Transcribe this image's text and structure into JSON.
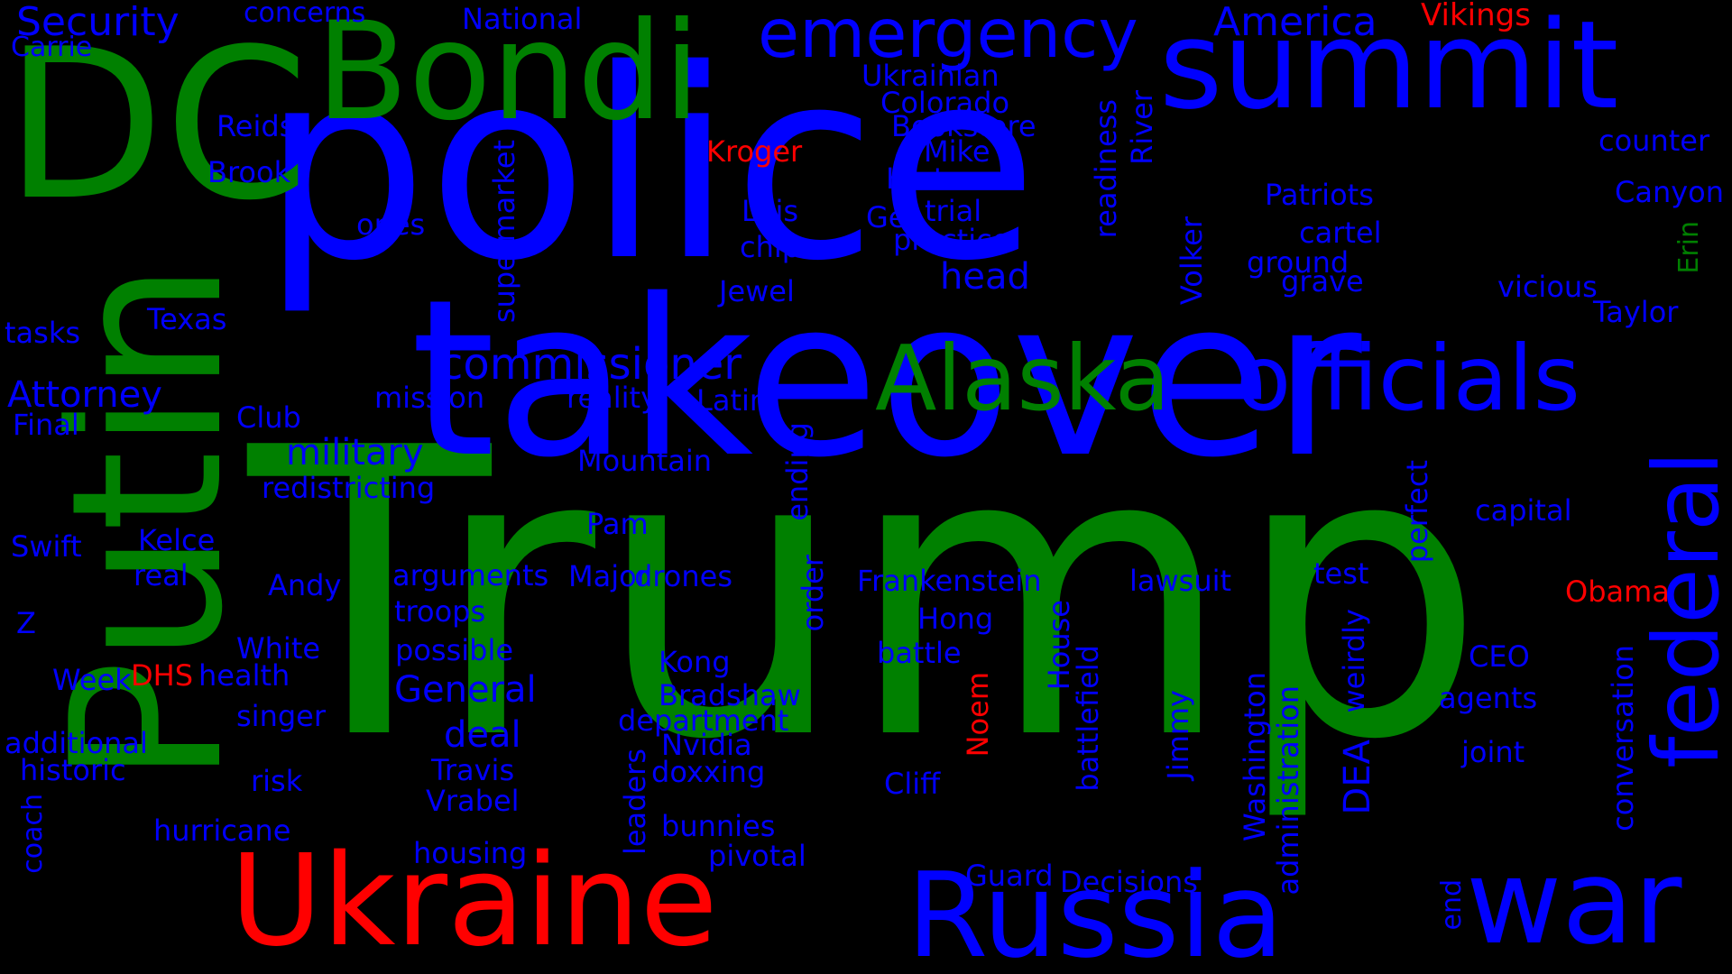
{
  "colors": {
    "background": "#000000",
    "blue": "#0000ff",
    "green": "#008000",
    "red": "#ff0000"
  },
  "words": [
    {
      "text": "Trump",
      "color": "green"
    },
    {
      "text": "police",
      "color": "blue"
    },
    {
      "text": "takeover",
      "color": "blue"
    },
    {
      "text": "DC",
      "color": "green"
    },
    {
      "text": "Putin",
      "color": "green"
    },
    {
      "text": "Bondi",
      "color": "green"
    },
    {
      "text": "summit",
      "color": "blue"
    },
    {
      "text": "Ukraine",
      "color": "red"
    },
    {
      "text": "Russia",
      "color": "blue"
    },
    {
      "text": "war",
      "color": "blue"
    },
    {
      "text": "officials",
      "color": "blue"
    },
    {
      "text": "Alaska",
      "color": "green"
    },
    {
      "text": "federal",
      "color": "blue"
    },
    {
      "text": "emergency",
      "color": "blue"
    },
    {
      "text": "commissioner",
      "color": "blue"
    },
    {
      "text": "Security",
      "color": "blue"
    },
    {
      "text": "concerns",
      "color": "blue"
    },
    {
      "text": "National",
      "color": "blue"
    },
    {
      "text": "America",
      "color": "blue"
    },
    {
      "text": "Vikings",
      "color": "red"
    },
    {
      "text": "Carrie",
      "color": "blue"
    },
    {
      "text": "Ukrainian",
      "color": "blue"
    },
    {
      "text": "Colorado",
      "color": "blue"
    },
    {
      "text": "Bookstore",
      "color": "blue"
    },
    {
      "text": "Reids",
      "color": "blue"
    },
    {
      "text": "Kroger",
      "color": "red"
    },
    {
      "text": "Mike",
      "color": "blue"
    },
    {
      "text": "counter",
      "color": "blue"
    },
    {
      "text": "Brook",
      "color": "blue"
    },
    {
      "text": "Kurt",
      "color": "blue"
    },
    {
      "text": "readiness",
      "color": "blue"
    },
    {
      "text": "River",
      "color": "blue"
    },
    {
      "text": "Patriots",
      "color": "blue"
    },
    {
      "text": "Canyon",
      "color": "blue"
    },
    {
      "text": "Lais",
      "color": "blue"
    },
    {
      "text": "Gen",
      "color": "blue"
    },
    {
      "text": "trial",
      "color": "blue"
    },
    {
      "text": "ones",
      "color": "blue"
    },
    {
      "text": "chip",
      "color": "blue"
    },
    {
      "text": "practice",
      "color": "blue"
    },
    {
      "text": "cartel",
      "color": "blue"
    },
    {
      "text": "Erin",
      "color": "green"
    },
    {
      "text": "supermarket",
      "color": "blue"
    },
    {
      "text": "ground",
      "color": "blue"
    },
    {
      "text": "head",
      "color": "blue"
    },
    {
      "text": "Volker",
      "color": "blue"
    },
    {
      "text": "grave",
      "color": "blue"
    },
    {
      "text": "vicious",
      "color": "blue"
    },
    {
      "text": "Jewel",
      "color": "blue"
    },
    {
      "text": "Taylor",
      "color": "blue"
    },
    {
      "text": "Texas",
      "color": "blue"
    },
    {
      "text": "tasks",
      "color": "blue"
    },
    {
      "text": "Attorney",
      "color": "blue"
    },
    {
      "text": "mission",
      "color": "blue"
    },
    {
      "text": "reality",
      "color": "blue"
    },
    {
      "text": "Latin",
      "color": "blue"
    },
    {
      "text": "Final",
      "color": "blue"
    },
    {
      "text": "Club",
      "color": "blue"
    },
    {
      "text": "military",
      "color": "blue"
    },
    {
      "text": "Mountain",
      "color": "blue"
    },
    {
      "text": "ending",
      "color": "blue"
    },
    {
      "text": "redistricting",
      "color": "blue"
    },
    {
      "text": "capital",
      "color": "blue"
    },
    {
      "text": "perfect",
      "color": "blue"
    },
    {
      "text": "Pam",
      "color": "blue"
    },
    {
      "text": "Swift",
      "color": "blue"
    },
    {
      "text": "Kelce",
      "color": "blue"
    },
    {
      "text": "arguments",
      "color": "blue"
    },
    {
      "text": "Major",
      "color": "blue"
    },
    {
      "text": "drones",
      "color": "blue"
    },
    {
      "text": "Frankenstein",
      "color": "blue"
    },
    {
      "text": "lawsuit",
      "color": "blue"
    },
    {
      "text": "test",
      "color": "blue"
    },
    {
      "text": "real",
      "color": "blue"
    },
    {
      "text": "Andy",
      "color": "blue"
    },
    {
      "text": "order",
      "color": "blue"
    },
    {
      "text": "Obama",
      "color": "red"
    },
    {
      "text": "troops",
      "color": "blue"
    },
    {
      "text": "Hong",
      "color": "blue"
    },
    {
      "text": "Z",
      "color": "blue"
    },
    {
      "text": "White",
      "color": "blue"
    },
    {
      "text": "possible",
      "color": "blue"
    },
    {
      "text": "battle",
      "color": "blue"
    },
    {
      "text": "House",
      "color": "blue"
    },
    {
      "text": "weirdly",
      "color": "blue"
    },
    {
      "text": "CEO",
      "color": "blue"
    },
    {
      "text": "Kong",
      "color": "blue"
    },
    {
      "text": "Week",
      "color": "blue"
    },
    {
      "text": "DHS",
      "color": "red"
    },
    {
      "text": "health",
      "color": "blue"
    },
    {
      "text": "General",
      "color": "blue"
    },
    {
      "text": "Bradshaw",
      "color": "blue"
    },
    {
      "text": "Noem",
      "color": "red"
    },
    {
      "text": "agents",
      "color": "blue"
    },
    {
      "text": "singer",
      "color": "blue"
    },
    {
      "text": "department",
      "color": "blue"
    },
    {
      "text": "Jimmy",
      "color": "blue"
    },
    {
      "text": "Washington",
      "color": "blue"
    },
    {
      "text": "conversation",
      "color": "blue"
    },
    {
      "text": "deal",
      "color": "blue"
    },
    {
      "text": "additional",
      "color": "blue"
    },
    {
      "text": "Nvidia",
      "color": "blue"
    },
    {
      "text": "DEA",
      "color": "blue"
    },
    {
      "text": "joint",
      "color": "blue"
    },
    {
      "text": "historic",
      "color": "blue"
    },
    {
      "text": "Travis",
      "color": "blue"
    },
    {
      "text": "doxxing",
      "color": "blue"
    },
    {
      "text": "risk",
      "color": "blue"
    },
    {
      "text": "Cliff",
      "color": "blue"
    },
    {
      "text": "administration",
      "color": "blue"
    },
    {
      "text": "Vrabel",
      "color": "blue"
    },
    {
      "text": "battlefield",
      "color": "blue"
    },
    {
      "text": "coach",
      "color": "blue"
    },
    {
      "text": "hurricane",
      "color": "blue"
    },
    {
      "text": "leaders",
      "color": "blue"
    },
    {
      "text": "bunnies",
      "color": "blue"
    },
    {
      "text": "housing",
      "color": "blue"
    },
    {
      "text": "pivotal",
      "color": "blue"
    },
    {
      "text": "Guard",
      "color": "blue"
    },
    {
      "text": "Decisions",
      "color": "blue"
    },
    {
      "text": "end",
      "color": "blue"
    }
  ]
}
